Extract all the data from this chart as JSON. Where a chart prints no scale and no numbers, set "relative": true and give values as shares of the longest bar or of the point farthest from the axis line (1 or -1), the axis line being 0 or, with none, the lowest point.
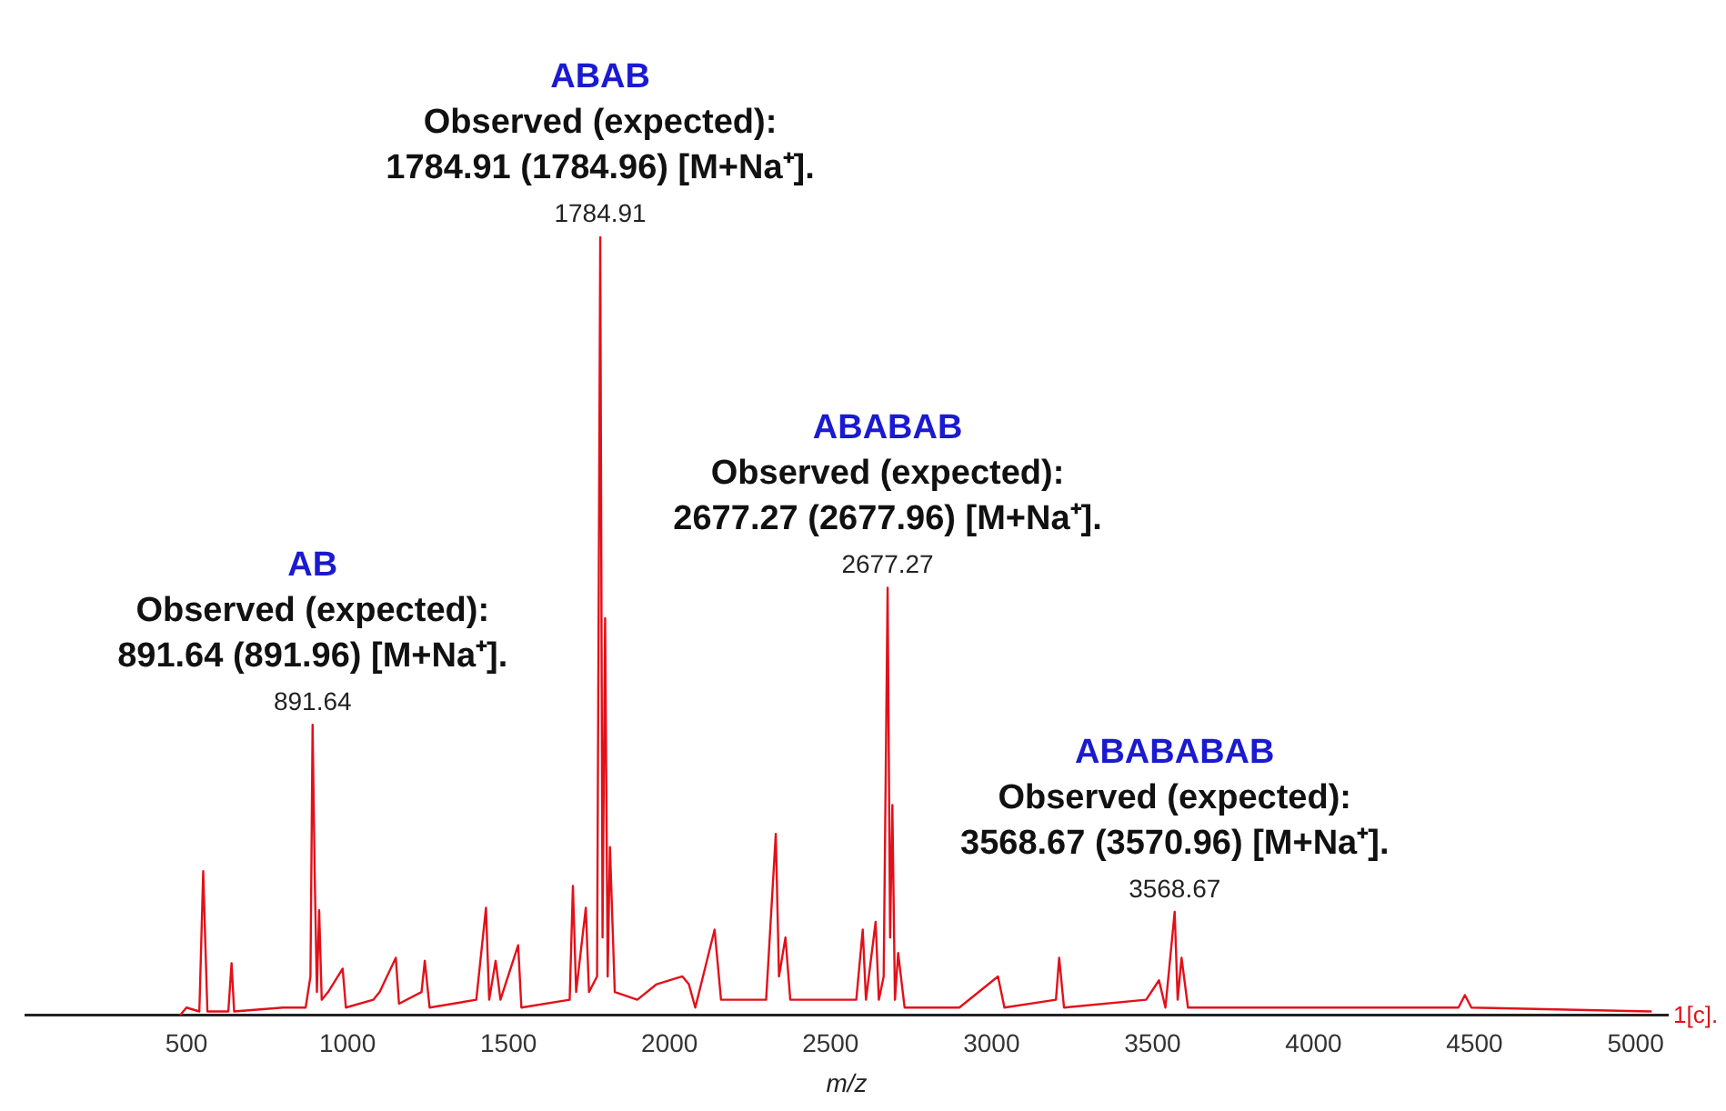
{
  "chart_data": {
    "type": "line",
    "relative": true,
    "xlabel": "m/z",
    "color": "#e3101a",
    "xlim": [
      0,
      5100
    ],
    "xticks": [
      500,
      1000,
      1500,
      2000,
      2500,
      3000,
      3500,
      4000,
      4500,
      5000
    ],
    "tick_labels": "x",
    "marker": "none",
    "x": [
      480,
      500,
      540,
      552,
      558,
      565,
      630,
      640,
      648,
      800,
      870,
      885,
      891.64,
      898,
      905,
      912,
      920,
      940,
      985,
      995,
      1080,
      1100,
      1150,
      1160,
      1230,
      1240,
      1255,
      1400,
      1430,
      1440,
      1460,
      1475,
      1530,
      1540,
      1690,
      1700,
      1710,
      1740,
      1750,
      1775,
      1784.91,
      1792,
      1800,
      1808,
      1815,
      1830,
      1900,
      1960,
      2040,
      2060,
      2080,
      2140,
      2160,
      2300,
      2330,
      2340,
      2360,
      2375,
      2580,
      2600,
      2610,
      2640,
      2650,
      2665,
      2677.27,
      2685,
      2692,
      2700,
      2710,
      2730,
      2900,
      3020,
      3040,
      3200,
      3210,
      3225,
      3480,
      3520,
      3540,
      3568.67,
      3578,
      3590,
      3610,
      4100,
      4450,
      4470,
      4490,
      5050
    ],
    "values": [
      0,
      0.01,
      0.005,
      0.185,
      0.1,
      0.005,
      0.005,
      0.067,
      0.005,
      0.01,
      0.01,
      0.05,
      0.373,
      0.185,
      0.03,
      0.135,
      0.02,
      0.03,
      0.06,
      0.01,
      0.02,
      0.03,
      0.074,
      0.015,
      0.03,
      0.07,
      0.01,
      0.02,
      0.138,
      0.02,
      0.07,
      0.02,
      0.09,
      0.01,
      0.02,
      0.166,
      0.03,
      0.138,
      0.03,
      0.05,
      1,
      0.1,
      0.51,
      0.05,
      0.216,
      0.03,
      0.02,
      0.04,
      0.05,
      0.04,
      0.01,
      0.11,
      0.02,
      0.02,
      0.233,
      0.05,
      0.1,
      0.02,
      0.02,
      0.11,
      0.02,
      0.12,
      0.02,
      0.05,
      0.549,
      0.1,
      0.27,
      0.02,
      0.08,
      0.01,
      0.01,
      0.05,
      0.01,
      0.02,
      0.074,
      0.01,
      0.02,
      0.045,
      0.01,
      0.133,
      0.02,
      0.074,
      0.01,
      0.01,
      0.01,
      0.026,
      0.01,
      0.005
    ],
    "annotations": [
      {
        "text": "891.64",
        "x": 891.64,
        "y": 0.373
      },
      {
        "text": "1784.91",
        "x": 1784.91,
        "y": 1
      },
      {
        "text": "2677.27",
        "x": 2677.27,
        "y": 0.549
      },
      {
        "text": "3568.67",
        "x": 3568.67,
        "y": 0.133
      },
      {
        "text": "AB\nObserved (expected):\n891.64 (891.96) [M+Na⁺].",
        "x": 891.64,
        "y": 0.373
      },
      {
        "text": "ABAB\nObserved (expected):\n1784.91 (1784.96) [M+Na⁺].",
        "x": 1784.91,
        "y": 1
      },
      {
        "text": "ABABAB\nObserved (expected):\n2677.27 (2677.96) [M+Na⁺].",
        "x": 2677.27,
        "y": 0.549
      },
      {
        "text": "ABABABAB\nObserved (expected):\n3568.67 (3570.96) [M+Na⁺].",
        "x": 3568.67,
        "y": 0.133
      },
      "1[c]."
    ]
  }
}
